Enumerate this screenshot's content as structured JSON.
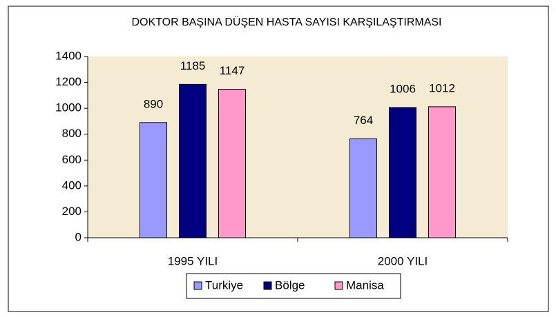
{
  "chart_data": {
    "type": "bar",
    "title": "DOKTOR BAŞINA DÜŞEN HASTA SAYISI KARŞILAŞTIRMASI",
    "categories": [
      "1995 YILI",
      "2000 YILI"
    ],
    "series": [
      {
        "name": "Turkiye",
        "color": "#9999ff",
        "values": [
          890,
          764
        ]
      },
      {
        "name": "Bölge",
        "color": "#000080",
        "values": [
          1185,
          1006
        ]
      },
      {
        "name": "Manisa",
        "color": "#ff99cc",
        "values": [
          1147,
          1012
        ]
      }
    ],
    "ylim": [
      0,
      1400
    ],
    "yticks": [
      0,
      200,
      400,
      600,
      800,
      1000,
      1200,
      1400
    ],
    "legend": "bottom",
    "plot_background": "#f4ebd2"
  }
}
